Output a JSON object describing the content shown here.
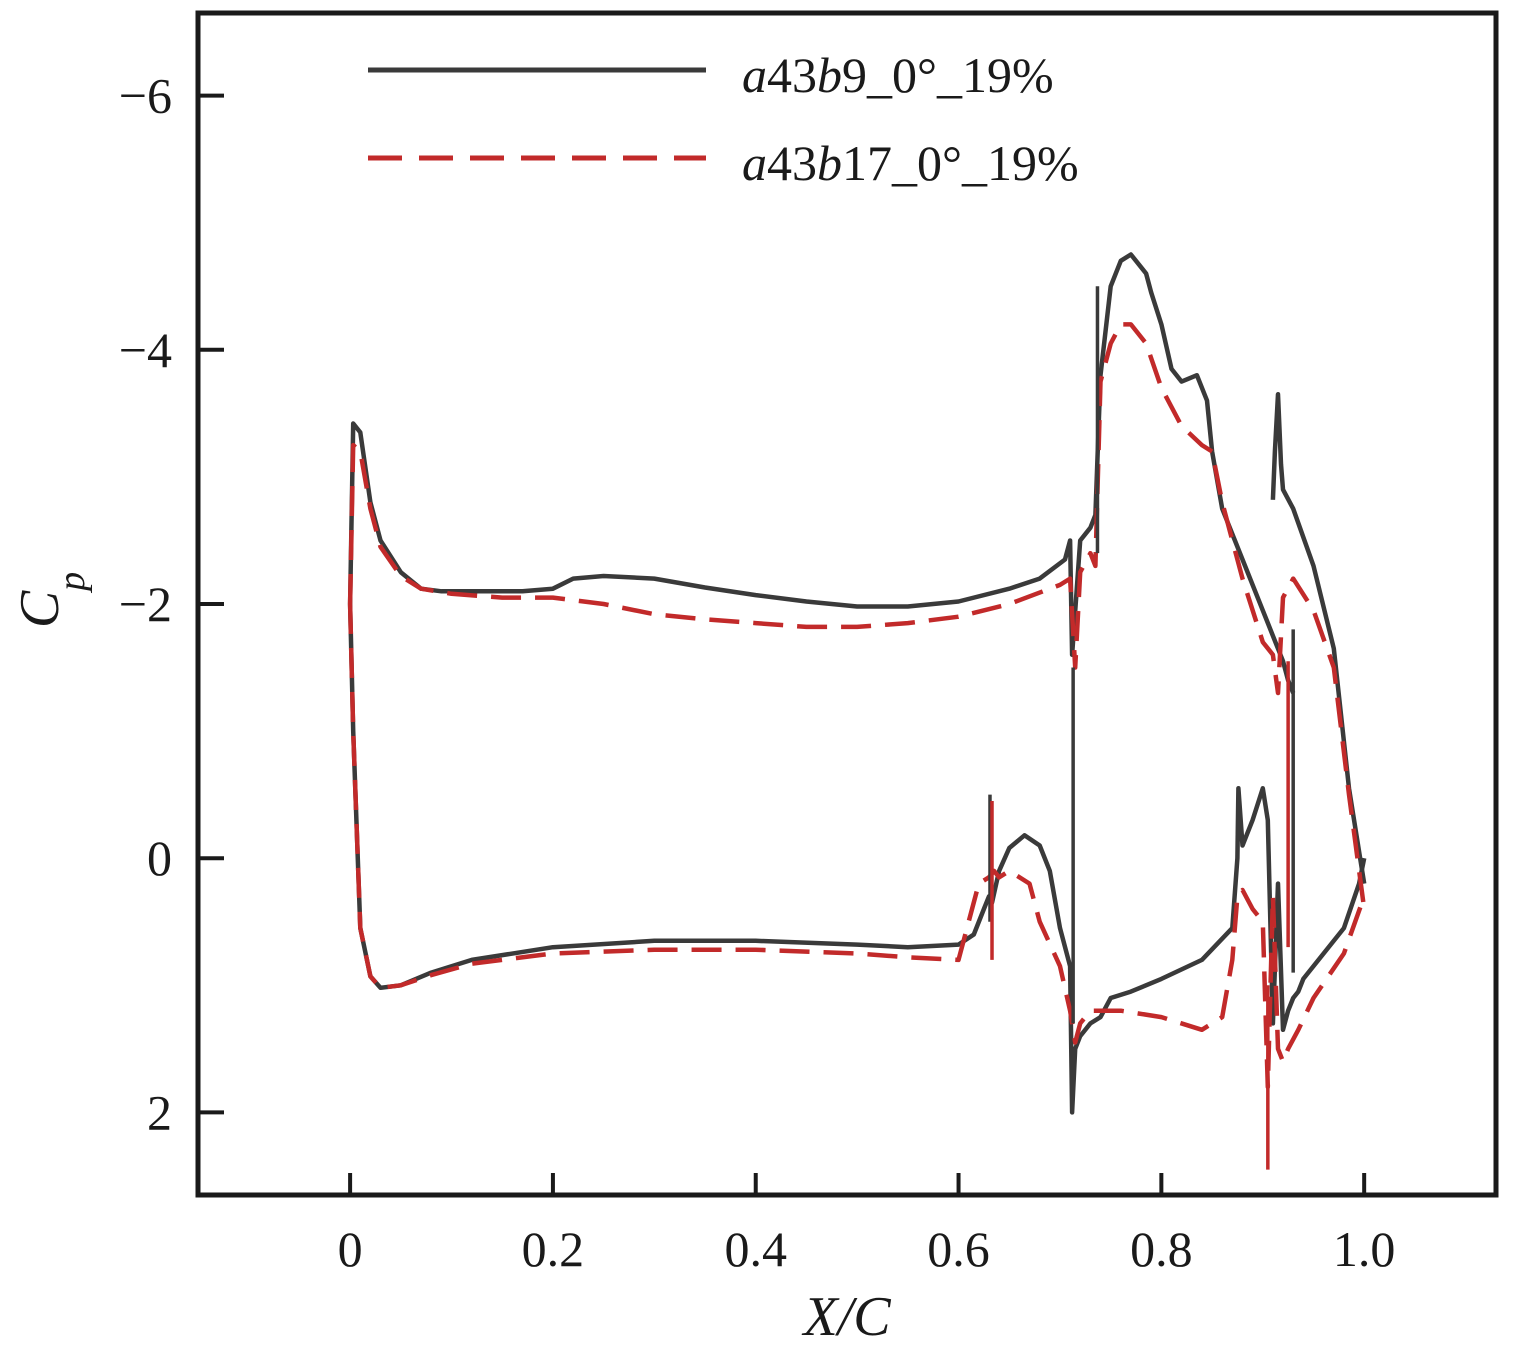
{
  "chart_data": {
    "type": "line",
    "title": "",
    "xlabel": "X/C",
    "ylabel": "C",
    "ylabel_subscript": "p",
    "xlim": [
      -0.15,
      1.13
    ],
    "ylim": [
      2.65,
      -6.65
    ],
    "y_inverted": true,
    "xticks": [
      0,
      0.2,
      0.4,
      0.6,
      0.8,
      1.0
    ],
    "xtick_labels": [
      "0",
      "0.2",
      "0.4",
      "0.6",
      "0.8",
      "1.0"
    ],
    "yticks": [
      -6,
      -4,
      -2,
      0,
      2
    ],
    "ytick_labels": [
      "−6",
      "−4",
      "−2",
      "0",
      "2"
    ],
    "grid": false,
    "legend_position": "top-center",
    "series": [
      {
        "name": "a43b9_0°_19%",
        "name_parts": [
          "a",
          "43",
          "b",
          "9_0°_19%"
        ],
        "color": "#3a3a3a",
        "style": "solid",
        "segments": [
          {
            "x": [
              0.0,
              0.003,
              0.01,
              0.02,
              0.03,
              0.05,
              0.07,
              0.09,
              0.11,
              0.14,
              0.17,
              0.2,
              0.22,
              0.25,
              0.3,
              0.35,
              0.4,
              0.45,
              0.5,
              0.55,
              0.6,
              0.65,
              0.68,
              0.705,
              0.71,
              0.712,
              0.72,
              0.73,
              0.735,
              0.74,
              0.75,
              0.76,
              0.77,
              0.785,
              0.79,
              0.8,
              0.81,
              0.82,
              0.835,
              0.845,
              0.85,
              0.86,
              0.88,
              0.9,
              0.92,
              0.925,
              0.93
            ],
            "y": [
              -2.0,
              -3.42,
              -3.35,
              -2.8,
              -2.5,
              -2.25,
              -2.12,
              -2.1,
              -2.1,
              -2.1,
              -2.1,
              -2.12,
              -2.2,
              -2.22,
              -2.2,
              -2.13,
              -2.07,
              -2.02,
              -1.98,
              -1.98,
              -2.02,
              -2.12,
              -2.2,
              -2.35,
              -2.5,
              -1.6,
              -2.5,
              -2.6,
              -2.7,
              -3.8,
              -4.5,
              -4.7,
              -4.75,
              -4.6,
              -4.45,
              -4.2,
              -3.85,
              -3.75,
              -3.8,
              -3.6,
              -3.2,
              -2.75,
              -2.35,
              -1.95,
              -1.55,
              -1.4,
              -1.3
            ]
          },
          {
            "x": [
              0.91,
              0.912,
              0.915,
              0.918,
              0.92,
              0.93,
              0.95,
              0.97,
              0.985,
              1.0
            ],
            "y": [
              -2.82,
              -3.2,
              -3.65,
              -3.1,
              -2.9,
              -2.75,
              -2.3,
              -1.65,
              -0.55,
              0.2
            ]
          },
          {
            "x": [
              0.0,
              0.003,
              0.01,
              0.02,
              0.03,
              0.05,
              0.08,
              0.12,
              0.2,
              0.3,
              0.4,
              0.5,
              0.55,
              0.6,
              0.615,
              0.625,
              0.63,
              0.633,
              0.64,
              0.65,
              0.665,
              0.68,
              0.69,
              0.7,
              0.71,
              0.712,
              0.715,
              0.72,
              0.73,
              0.74,
              0.75,
              0.77,
              0.8,
              0.84,
              0.87,
              0.875,
              0.876,
              0.88,
              0.89,
              0.9,
              0.905,
              0.91,
              0.915,
              0.92,
              0.925,
              0.93,
              0.935,
              0.94,
              0.96,
              0.98,
              0.995,
              1.0
            ],
            "y": [
              -2.0,
              -1.0,
              0.55,
              0.93,
              1.02,
              1.0,
              0.9,
              0.8,
              0.7,
              0.65,
              0.65,
              0.68,
              0.7,
              0.68,
              0.6,
              0.4,
              0.3,
              0.35,
              0.1,
              -0.08,
              -0.18,
              -0.1,
              0.1,
              0.55,
              0.85,
              2.0,
              1.5,
              1.4,
              1.3,
              1.25,
              1.1,
              1.05,
              0.95,
              0.8,
              0.55,
              0.0,
              -0.55,
              -0.1,
              -0.3,
              -0.55,
              -0.3,
              1.3,
              0.2,
              1.35,
              1.2,
              1.1,
              1.05,
              0.95,
              0.75,
              0.55,
              0.2,
              0.0
            ]
          }
        ]
      },
      {
        "name": "a43b17_0°_19%",
        "name_parts": [
          "a",
          "43",
          "b",
          "17_0°_19%"
        ],
        "color": "#c22a2a",
        "style": "dashed",
        "segments": [
          {
            "x": [
              0.0,
              0.003,
              0.01,
              0.02,
              0.03,
              0.05,
              0.07,
              0.1,
              0.15,
              0.2,
              0.25,
              0.3,
              0.35,
              0.4,
              0.45,
              0.5,
              0.55,
              0.6,
              0.65,
              0.7,
              0.71,
              0.715,
              0.72,
              0.73,
              0.735,
              0.74,
              0.75,
              0.76,
              0.77,
              0.785,
              0.8,
              0.82,
              0.84,
              0.85,
              0.86,
              0.88,
              0.9,
              0.91,
              0.915,
              0.92,
              0.93,
              0.95,
              0.97,
              0.985,
              1.0
            ],
            "y": [
              -2.0,
              -3.25,
              -3.2,
              -2.75,
              -2.45,
              -2.22,
              -2.12,
              -2.08,
              -2.05,
              -2.05,
              -2.0,
              -1.92,
              -1.88,
              -1.85,
              -1.82,
              -1.82,
              -1.85,
              -1.9,
              -2.0,
              -2.15,
              -2.2,
              -1.5,
              -2.25,
              -2.4,
              -2.3,
              -3.75,
              -4.05,
              -4.2,
              -4.2,
              -4.05,
              -3.7,
              -3.4,
              -3.25,
              -3.2,
              -2.8,
              -2.2,
              -1.7,
              -1.6,
              -1.3,
              -2.05,
              -2.2,
              -1.95,
              -1.5,
              -0.5,
              0.4
            ]
          },
          {
            "x": [
              0.0,
              0.003,
              0.01,
              0.02,
              0.03,
              0.05,
              0.08,
              0.12,
              0.2,
              0.3,
              0.4,
              0.5,
              0.55,
              0.6,
              0.62,
              0.63,
              0.635,
              0.64,
              0.65,
              0.67,
              0.68,
              0.7,
              0.71,
              0.715,
              0.72,
              0.73,
              0.76,
              0.8,
              0.84,
              0.86,
              0.87,
              0.875,
              0.88,
              0.89,
              0.9,
              0.905,
              0.91,
              0.915,
              0.92,
              0.925,
              0.935,
              0.95,
              0.98,
              1.0
            ],
            "y": [
              -2.0,
              -1.0,
              0.55,
              0.93,
              1.02,
              1.0,
              0.92,
              0.83,
              0.75,
              0.72,
              0.72,
              0.75,
              0.78,
              0.8,
              0.2,
              0.15,
              0.1,
              0.15,
              0.1,
              0.2,
              0.5,
              0.85,
              1.2,
              1.45,
              1.3,
              1.2,
              1.2,
              1.25,
              1.35,
              1.25,
              0.8,
              0.3,
              0.25,
              0.4,
              0.5,
              1.8,
              0.3,
              1.5,
              1.6,
              1.5,
              1.35,
              1.1,
              0.75,
              0.3
            ]
          }
        ]
      }
    ],
    "spikes": [
      {
        "series": 0,
        "x": 0.737,
        "y_from": -2.4,
        "y_to": -4.5
      },
      {
        "series": 0,
        "x": 0.713,
        "y_from": -1.5,
        "y_to": 1.3
      },
      {
        "series": 0,
        "x": 0.631,
        "y_from": 0.5,
        "y_to": -0.5
      },
      {
        "series": 0,
        "x": 0.93,
        "y_from": -1.8,
        "y_to": 0.9
      },
      {
        "series": 1,
        "x": 0.633,
        "y_from": 0.8,
        "y_to": -0.45
      },
      {
        "series": 1,
        "x": 0.905,
        "y_from": 1.0,
        "y_to": 2.45
      },
      {
        "series": 1,
        "x": 0.925,
        "y_from": 0.7,
        "y_to": -1.55
      }
    ]
  }
}
